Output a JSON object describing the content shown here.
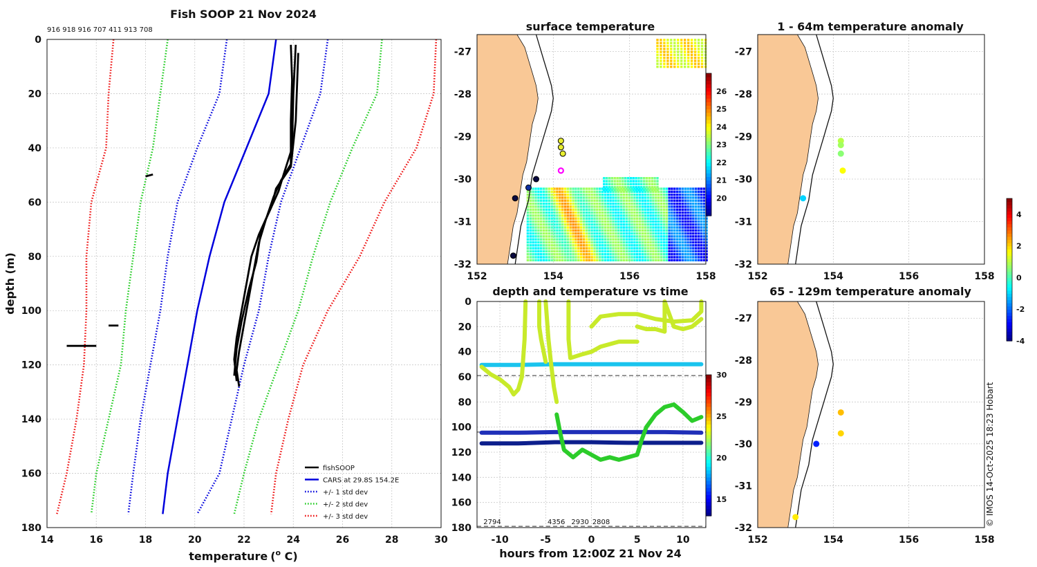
{
  "chart_data": [
    {
      "id": "profile",
      "type": "line",
      "title": "Fish SOOP 21 Nov 2024",
      "top_labels": "916 918 916 707 411 913 708",
      "xlabel": "temperature",
      "xlabel_unit_pre": "(",
      "xlabel_unit_sup": "o",
      "xlabel_unit_post": " C)",
      "ylabel": "depth (m)",
      "xlim": [
        14,
        30
      ],
      "ylim": [
        0,
        180
      ],
      "xticks": [
        14,
        16,
        18,
        20,
        22,
        24,
        26,
        28,
        30
      ],
      "yticks": [
        0,
        20,
        40,
        60,
        80,
        100,
        120,
        140,
        160,
        180
      ],
      "depth": [
        0,
        20,
        40,
        60,
        80,
        100,
        120,
        140,
        160,
        175
      ],
      "series": [
        {
          "name": "CARS at 29.8S 154.2E",
          "color": "#0000dd",
          "style": "solid",
          "values": [
            23.3,
            23.0,
            22.1,
            21.2,
            20.6,
            20.1,
            19.7,
            19.3,
            18.9,
            18.7
          ]
        },
        {
          "name": "+/- 1 std dev",
          "color": "#0000dd",
          "style": "dotted",
          "values": [
            21.3,
            21.0,
            20.1,
            19.3,
            18.9,
            18.6,
            18.2,
            17.8,
            17.5,
            17.3
          ]
        },
        {
          "name": "+/- 1 std dev",
          "color": "#0000dd",
          "style": "dotted",
          "values": [
            25.4,
            25.1,
            24.3,
            23.5,
            23.0,
            22.6,
            22.0,
            21.5,
            21.0,
            20.1
          ]
        },
        {
          "name": "+/- 2 std dev",
          "color": "#22cc22",
          "style": "dotted",
          "values": [
            18.9,
            18.6,
            18.3,
            17.8,
            17.5,
            17.2,
            17.0,
            16.5,
            16.0,
            15.8
          ]
        },
        {
          "name": "+/- 2 std dev",
          "color": "#22cc22",
          "style": "dotted",
          "values": [
            27.6,
            27.4,
            26.4,
            25.5,
            24.8,
            24.2,
            23.4,
            22.6,
            22.0,
            21.6
          ]
        },
        {
          "name": "+/- 3 std dev",
          "color": "#ee1111",
          "style": "dotted",
          "values": [
            16.7,
            16.5,
            16.4,
            15.8,
            15.6,
            15.6,
            15.5,
            15.2,
            14.8,
            14.4
          ]
        },
        {
          "name": "+/- 3 std dev",
          "color": "#ee1111",
          "style": "dotted",
          "values": [
            29.8,
            29.7,
            29.0,
            27.7,
            26.7,
            25.4,
            24.4,
            23.8,
            23.3,
            23.1
          ]
        }
      ],
      "fishsoop": [
        {
          "depth": [
            2,
            15,
            30,
            46,
            52,
            58,
            66,
            75,
            85,
            95,
            105,
            115,
            122,
            128
          ],
          "values": [
            23.9,
            23.95,
            23.9,
            23.9,
            23.5,
            23.2,
            22.9,
            22.6,
            22.4,
            22.2,
            22.0,
            21.8,
            21.7,
            21.8
          ]
        },
        {
          "depth": [
            2,
            20,
            40,
            50,
            56,
            64,
            72,
            80,
            90,
            100,
            110,
            118,
            126
          ],
          "values": [
            24.1,
            24.0,
            23.95,
            23.6,
            23.4,
            23.0,
            22.6,
            22.3,
            22.1,
            21.9,
            21.7,
            21.6,
            21.7
          ]
        },
        {
          "depth": [
            5,
            30,
            47,
            55,
            62,
            70,
            82,
            92,
            104,
            114,
            124
          ],
          "values": [
            24.2,
            24.1,
            23.9,
            23.3,
            23.1,
            22.7,
            22.5,
            22.2,
            21.9,
            21.7,
            21.6
          ]
        }
      ],
      "fragments": [
        {
          "depth": [
            113,
            113,
            113
          ],
          "values": [
            14.8,
            15.4,
            16.0
          ]
        },
        {
          "depth": [
            105.5,
            105.5
          ],
          "values": [
            16.5,
            16.9
          ]
        },
        {
          "depth": [
            50.5,
            49.8
          ],
          "values": [
            18.0,
            18.3
          ]
        }
      ],
      "legend": [
        "fishSOOP",
        "CARS at 29.8S 154.2E",
        "+/- 1 std dev",
        "+/- 2 std dev",
        "+/- 3 std dev"
      ],
      "legend_position": "bottom-right"
    },
    {
      "id": "sst",
      "type": "heatmap",
      "title": "surface temperature",
      "xlim": [
        152,
        158
      ],
      "ylim": [
        -32,
        -26.6
      ],
      "xticks": [
        152,
        154,
        156,
        158
      ],
      "yticks": [
        -27,
        -28,
        -29,
        -30,
        -31,
        -32
      ],
      "colorbar": {
        "range": [
          19,
          27
        ],
        "ticks": [
          20,
          21,
          22,
          23,
          24,
          25,
          26
        ]
      },
      "stations": [
        {
          "lon": 154.2,
          "lat": -29.1,
          "fill": "#e8ee30"
        },
        {
          "lon": 154.2,
          "lat": -29.25,
          "fill": "#e8ee30"
        },
        {
          "lon": 154.25,
          "lat": -29.4,
          "fill": "#e8ee30"
        },
        {
          "lon": 154.2,
          "lat": -29.8,
          "fill": "#ff00ff"
        },
        {
          "lon": 153.55,
          "lat": -30.0,
          "fill": "#0a0a40"
        },
        {
          "lon": 153.0,
          "lat": -30.45,
          "fill": "#0a0a40"
        },
        {
          "lon": 152.95,
          "lat": -31.8,
          "fill": "#0a0a40"
        },
        {
          "lon": 153.35,
          "lat": -30.2,
          "fill": "#1030a0"
        }
      ]
    },
    {
      "id": "time",
      "type": "scatter",
      "title": "depth and temperature vs time",
      "xlabel": "hours from 12:00Z 21 Nov 24",
      "xlim": [
        -12.5,
        12.5
      ],
      "ylim": [
        0,
        180
      ],
      "xticks": [
        -10,
        -5,
        0,
        5,
        10
      ],
      "yticks": [
        0,
        20,
        40,
        60,
        80,
        100,
        120,
        140,
        160,
        180
      ],
      "dashed_depths": [
        59,
        104,
        179
      ],
      "bottom_labels": [
        {
          "t": -11.8,
          "text": "2794"
        },
        {
          "t": -4.8,
          "text": "4356"
        },
        {
          "t": -2.2,
          "text": "2930"
        },
        {
          "t": 0.1,
          "text": "2808"
        }
      ],
      "colorbar": {
        "range": [
          13,
          30
        ],
        "ticks": [
          15,
          20,
          25,
          30
        ]
      },
      "tracks": [
        {
          "color": "#1ac4ee",
          "t": [
            -12,
            -8,
            -4,
            0,
            4,
            8,
            12
          ],
          "depth": [
            50.5,
            50.5,
            50,
            50,
            50,
            50,
            50
          ]
        },
        {
          "color": "#1f2fb8",
          "t": [
            -12,
            -8,
            -4,
            0,
            4,
            8,
            12
          ],
          "depth": [
            104.5,
            104.5,
            104,
            104,
            104,
            104,
            104.5
          ]
        },
        {
          "color": "#0d1f8c",
          "t": [
            -12,
            -8,
            -4,
            0,
            4,
            8,
            12
          ],
          "depth": [
            113,
            113,
            112,
            112,
            112.5,
            112.5,
            112.5
          ]
        },
        {
          "color": "#c8ea2a",
          "t": [
            -12,
            -11,
            -10,
            -9,
            -8.5,
            -8,
            -7.6,
            -7.3,
            -7.2
          ],
          "depth": [
            52,
            58,
            62,
            68,
            74,
            70,
            60,
            30,
            0
          ]
        },
        {
          "color": "#c8ea2a",
          "t": [
            -5,
            -4.7,
            -4.4,
            -4.1,
            -3.8
          ],
          "depth": [
            0,
            30,
            50,
            68,
            80
          ]
        },
        {
          "color": "#2ccc2a",
          "t": [
            -3.8,
            -3.4,
            -3.0,
            -2.0,
            -1.0,
            0,
            1,
            2,
            3,
            4,
            5,
            5.5,
            6,
            7,
            8,
            9,
            10,
            11,
            12
          ],
          "depth": [
            90,
            105,
            118,
            124,
            118,
            122,
            126,
            124,
            126,
            124,
            122,
            110,
            100,
            90,
            84,
            82,
            88,
            95,
            92
          ]
        },
        {
          "color": "#c8ea2a",
          "t": [
            -2.5,
            -2.5,
            -2.3,
            -1,
            0,
            1,
            3,
            5
          ],
          "depth": [
            0,
            30,
            45,
            42,
            40,
            36,
            32,
            32
          ]
        },
        {
          "color": "#c8ea2a",
          "t": [
            0,
            1,
            3,
            5,
            7,
            9,
            11,
            12,
            12
          ],
          "depth": [
            20,
            12,
            10,
            10,
            14,
            16,
            15,
            8,
            0
          ]
        },
        {
          "color": "#c8ea2a",
          "t": [
            -5.7,
            -5.7,
            -5.5,
            -5.0
          ],
          "depth": [
            0,
            20,
            30,
            48
          ]
        },
        {
          "color": "#c8ea2a",
          "t": [
            5,
            6,
            7,
            8,
            8,
            9,
            10,
            11,
            12
          ],
          "depth": [
            20,
            22,
            22,
            24,
            0,
            20,
            22,
            20,
            14
          ]
        }
      ]
    },
    {
      "id": "anom_shallow",
      "type": "scatter",
      "title": "1 - 64m temperature anomaly",
      "xlim": [
        152,
        158
      ],
      "ylim": [
        -32,
        -26.6
      ],
      "xticks": [
        152,
        154,
        156,
        158
      ],
      "yticks": [
        -27,
        -28,
        -29,
        -30,
        -31,
        -32
      ],
      "points": [
        {
          "lon": 154.2,
          "lat": -29.1,
          "value": 1.0
        },
        {
          "lon": 154.2,
          "lat": -29.2,
          "value": 0.8
        },
        {
          "lon": 154.2,
          "lat": -29.4,
          "value": 0.6
        },
        {
          "lon": 154.25,
          "lat": -29.8,
          "value": 1.6
        },
        {
          "lon": 153.2,
          "lat": -30.45,
          "value": -1.0
        }
      ]
    },
    {
      "id": "anom_deep",
      "type": "scatter",
      "title": "65 - 129m temperature anomaly",
      "xlim": [
        152,
        158
      ],
      "ylim": [
        -32,
        -26.6
      ],
      "xticks": [
        152,
        154,
        156,
        158
      ],
      "yticks": [
        -27,
        -28,
        -29,
        -30,
        -31,
        -32
      ],
      "points": [
        {
          "lon": 154.2,
          "lat": -29.25,
          "value": 2.2
        },
        {
          "lon": 154.2,
          "lat": -29.75,
          "value": 2.0
        },
        {
          "lon": 153.55,
          "lat": -30.0,
          "value": -2.6
        },
        {
          "lon": 153.0,
          "lat": -31.75,
          "value": 1.8
        }
      ]
    },
    {
      "id": "anom_colorbar",
      "type": "heatmap",
      "range": [
        -4,
        5
      ],
      "ticks": [
        4,
        2,
        0,
        -2,
        -4
      ]
    }
  ],
  "footer": {
    "credit": "© IMOS 14-Oct-2025 18:23 Hobart"
  },
  "colors": {
    "land": "#f9c896",
    "coast": "#111111",
    "grid": "#c8c8c8"
  }
}
